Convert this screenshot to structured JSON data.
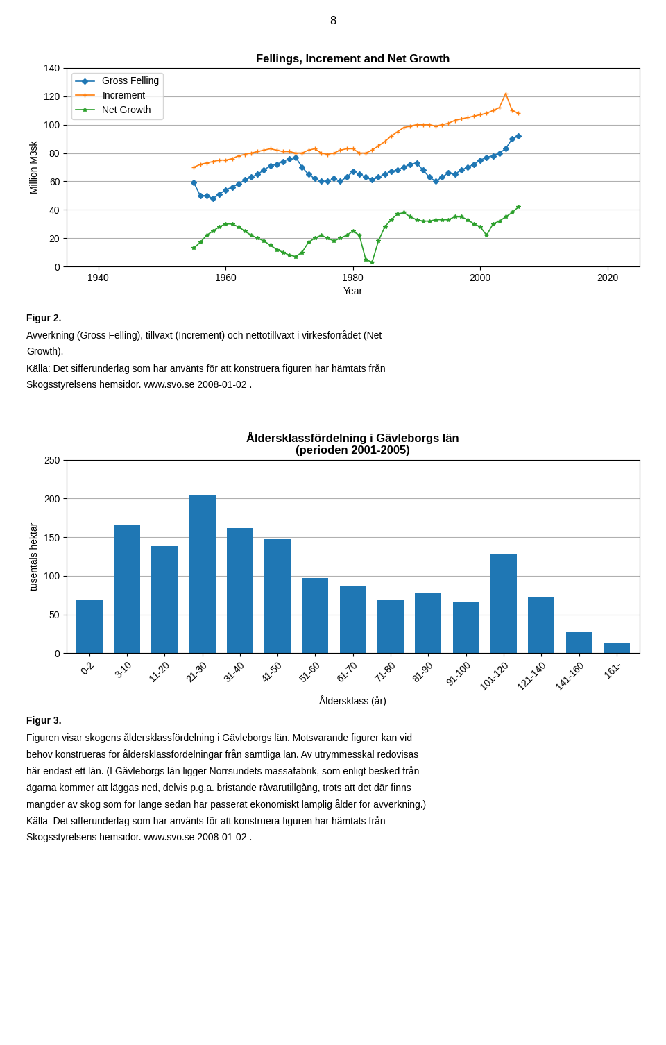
{
  "page_number": "8",
  "chart_data": [
    {
      "type": "line",
      "title": "Fellings, Increment and Net Growth",
      "xlabel": "Year",
      "ylabel": "Million M3sk",
      "x": [
        1955,
        1956,
        1957,
        1958,
        1959,
        1960,
        1961,
        1962,
        1963,
        1964,
        1965,
        1966,
        1967,
        1968,
        1969,
        1970,
        1971,
        1972,
        1973,
        1974,
        1975,
        1976,
        1977,
        1978,
        1979,
        1980,
        1981,
        1982,
        1983,
        1984,
        1985,
        1986,
        1987,
        1988,
        1989,
        1990,
        1991,
        1992,
        1993,
        1994,
        1995,
        1996,
        1997,
        1998,
        1999,
        2000,
        2001,
        2002,
        2003,
        2004,
        2005,
        2006
      ],
      "series": [
        {
          "name": "Gross Felling",
          "marker": "diamond",
          "values": [
            59,
            50,
            50,
            48,
            51,
            54,
            56,
            58,
            61,
            63,
            65,
            68,
            71,
            72,
            74,
            76,
            77,
            70,
            65,
            62,
            60,
            60,
            62,
            60,
            63,
            67,
            65,
            63,
            61,
            63,
            65,
            67,
            68,
            70,
            72,
            73,
            68,
            63,
            60,
            63,
            66,
            65,
            68,
            70,
            72,
            75,
            77,
            78,
            80,
            83,
            90,
            92
          ]
        },
        {
          "name": "Increment",
          "marker": "plus",
          "values": [
            70,
            72,
            73,
            74,
            75,
            75,
            76,
            78,
            79,
            80,
            81,
            82,
            83,
            82,
            81,
            81,
            80,
            80,
            82,
            83,
            80,
            79,
            80,
            82,
            83,
            83,
            80,
            80,
            82,
            85,
            88,
            92,
            95,
            98,
            99,
            100,
            100,
            100,
            99,
            100,
            101,
            103,
            104,
            105,
            106,
            107,
            108,
            110,
            112,
            122,
            110,
            108
          ]
        },
        {
          "name": "Net Growth",
          "marker": "star",
          "values": [
            13,
            17,
            22,
            25,
            28,
            30,
            30,
            28,
            25,
            22,
            20,
            18,
            15,
            12,
            10,
            8,
            7,
            10,
            17,
            20,
            22,
            20,
            18,
            20,
            22,
            25,
            22,
            5,
            3,
            18,
            28,
            33,
            37,
            38,
            35,
            33,
            32,
            32,
            33,
            33,
            33,
            35,
            35,
            33,
            30,
            28,
            22,
            30,
            32,
            35,
            38,
            42
          ]
        }
      ],
      "xlim": [
        1935,
        2025
      ],
      "xticks": [
        1940,
        1960,
        1980,
        2000,
        2020
      ],
      "ylim": [
        0,
        140
      ],
      "yticks": [
        0,
        20,
        40,
        60,
        80,
        100,
        120,
        140
      ],
      "grid": true,
      "legend": "upper left",
      "annotations": [
        "Figur 2.",
        "Avverkning (Gross Felling), tillväxt (Increment) och nettotillväxt i virkesförrådet (Net",
        "Growth).",
        "Källa: Det sifferunderlag som har använts för att konstruera figuren har hämtats från",
        "Skogsstyrelsens hemsidor. www.svo.se 2008-01-02 ."
      ]
    },
    {
      "type": "bar",
      "title": "Åldersklassfördelning i Gävleborgs län\n(perioden 2001-2005)",
      "xlabel": "Åldersklass (år)",
      "ylabel": "tusentals hektar",
      "categories": [
        "0-2",
        "3-10",
        "11-20",
        "21-30",
        "31-40",
        "41-50",
        "51-60",
        "61-70",
        "71-80",
        "81-90",
        "91-100",
        "101-120",
        "121-140",
        "141-160",
        "161-"
      ],
      "values": [
        68,
        165,
        138,
        205,
        162,
        147,
        97,
        87,
        68,
        78,
        66,
        128,
        73,
        27,
        13
      ],
      "ylim": [
        0,
        250
      ],
      "yticks": [
        0,
        50,
        100,
        150,
        200,
        250
      ],
      "grid": true,
      "annotations": [
        "Figur 3.",
        "Figuren visar skogens åldersklassfördelning i Gävleborgs län. Motsvarande figurer kan vid",
        "behov konstrueras för åldersklassfördelningar från samtliga län. Av utrymmesskäl redovisas",
        "här endast ett län. (I Gävleborgs län ligger Norrsundets massafabrik, som enligt besked från",
        "ägarna kommer att läggas ned, delvis p.g.a. bristande råvarutillgång, trots att det där finns",
        "mängder av skog som för länge sedan har passerat ekonomiskt lämplig ålder för avverkning.)",
        "Källa: Det sifferunderlag som har använts för att konstruera figuren har hämtats från",
        "Skogsstyrelsens hemsidor. www.svo.se 2008-01-02 ."
      ]
    }
  ]
}
